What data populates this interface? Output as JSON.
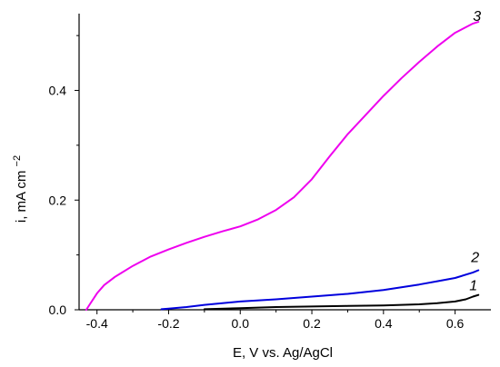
{
  "chart_data": {
    "type": "line",
    "title": "",
    "xlabel": "E, V vs. Ag/AgCl",
    "ylabel": {
      "main": "i, mA cm",
      "sup": "−2"
    },
    "xlim": [
      -0.45,
      0.7
    ],
    "ylim": [
      0,
      0.54
    ],
    "x_ticks": [
      -0.4,
      -0.2,
      0.0,
      0.2,
      0.4,
      0.6
    ],
    "x_tick_labels": [
      "-0.4",
      "-0.2",
      "0.0",
      "0.2",
      "0.4",
      "0.6"
    ],
    "y_ticks": [
      0.0,
      0.2,
      0.4
    ],
    "y_tick_labels": [
      "0.0",
      "0.2",
      "0.4"
    ],
    "grid": false,
    "legend": "none",
    "series": [
      {
        "label": "3",
        "color": "#ee00ee",
        "points": [
          [
            -0.43,
            0.0
          ],
          [
            -0.42,
            0.01
          ],
          [
            -0.4,
            0.03
          ],
          [
            -0.38,
            0.045
          ],
          [
            -0.35,
            0.06
          ],
          [
            -0.3,
            0.08
          ],
          [
            -0.25,
            0.097
          ],
          [
            -0.2,
            0.11
          ],
          [
            -0.15,
            0.122
          ],
          [
            -0.1,
            0.133
          ],
          [
            -0.05,
            0.143
          ],
          [
            0.0,
            0.152
          ],
          [
            0.05,
            0.165
          ],
          [
            0.1,
            0.182
          ],
          [
            0.15,
            0.205
          ],
          [
            0.2,
            0.238
          ],
          [
            0.25,
            0.28
          ],
          [
            0.3,
            0.32
          ],
          [
            0.35,
            0.355
          ],
          [
            0.4,
            0.39
          ],
          [
            0.45,
            0.422
          ],
          [
            0.5,
            0.452
          ],
          [
            0.55,
            0.48
          ],
          [
            0.6,
            0.505
          ],
          [
            0.65,
            0.522
          ],
          [
            0.665,
            0.525
          ]
        ]
      },
      {
        "label": "2",
        "color": "#0000dd",
        "points": [
          [
            -0.22,
            0.001
          ],
          [
            -0.2,
            0.002
          ],
          [
            -0.15,
            0.005
          ],
          [
            -0.1,
            0.009
          ],
          [
            -0.05,
            0.012
          ],
          [
            0.0,
            0.015
          ],
          [
            0.1,
            0.019
          ],
          [
            0.2,
            0.024
          ],
          [
            0.3,
            0.029
          ],
          [
            0.4,
            0.036
          ],
          [
            0.5,
            0.046
          ],
          [
            0.55,
            0.052
          ],
          [
            0.6,
            0.058
          ],
          [
            0.65,
            0.068
          ],
          [
            0.665,
            0.072
          ]
        ]
      },
      {
        "label": "1",
        "color": "#000000",
        "points": [
          [
            -0.1,
            0.001
          ],
          [
            0.0,
            0.003
          ],
          [
            0.1,
            0.005
          ],
          [
            0.2,
            0.006
          ],
          [
            0.3,
            0.007
          ],
          [
            0.4,
            0.008
          ],
          [
            0.5,
            0.01
          ],
          [
            0.55,
            0.012
          ],
          [
            0.6,
            0.015
          ],
          [
            0.63,
            0.019
          ],
          [
            0.65,
            0.024
          ],
          [
            0.665,
            0.027
          ]
        ]
      }
    ]
  }
}
